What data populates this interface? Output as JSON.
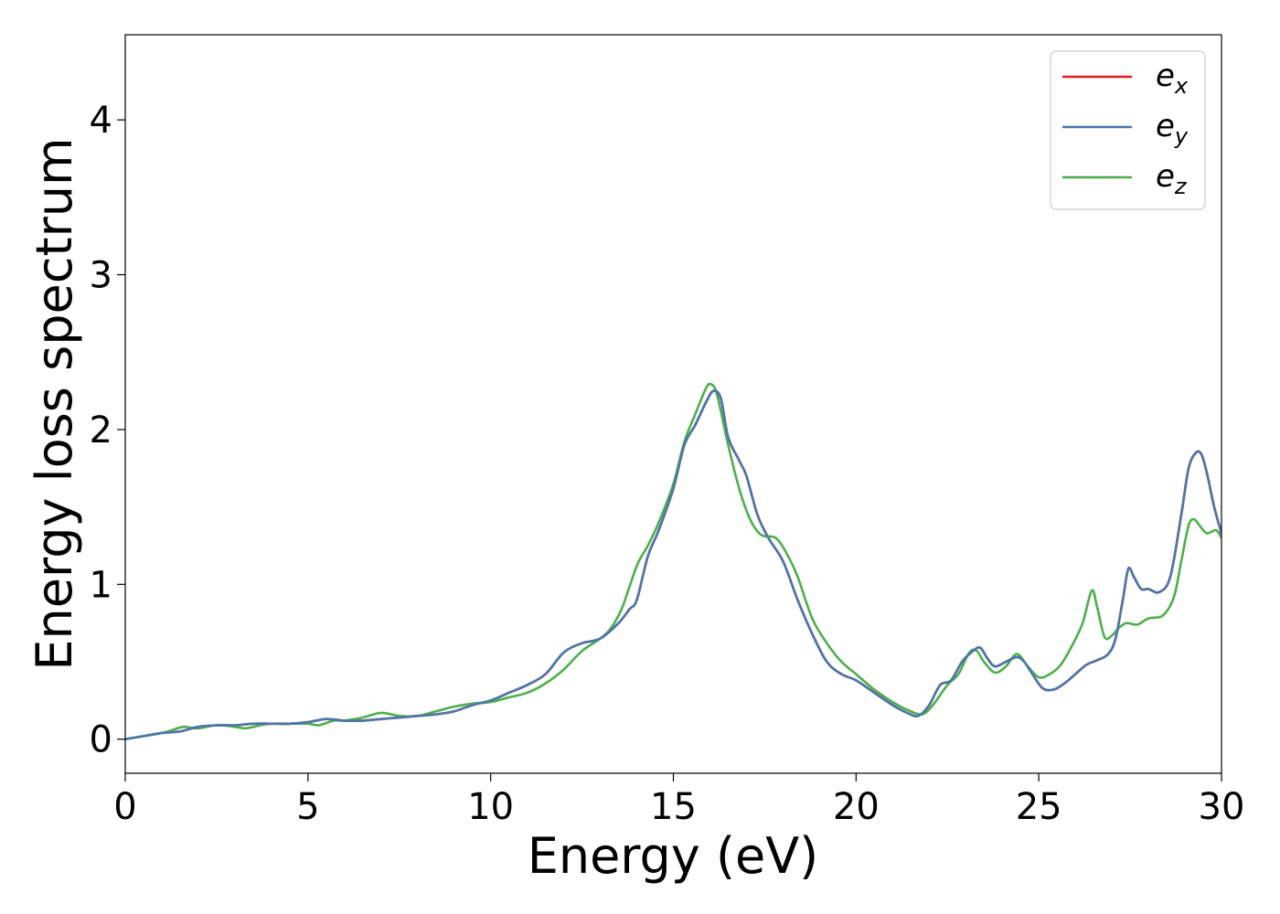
{
  "chart_data": {
    "type": "line",
    "title": "",
    "xlabel": "Energy (eV)",
    "ylabel": "Energy loss spectrum",
    "xlim": [
      0,
      30
    ],
    "ylim": [
      -0.22,
      4.55
    ],
    "xticks": [
      0,
      5,
      10,
      15,
      20,
      25,
      30
    ],
    "yticks": [
      0,
      1,
      2,
      3,
      4
    ],
    "grid": false,
    "legend_position": "top-right",
    "series": [
      {
        "name": "e_x",
        "label_base": "e",
        "label_sub": "x",
        "color": "#e41a1c",
        "x": [
          0,
          0.5,
          1,
          1.5,
          2,
          2.5,
          3,
          3.5,
          4,
          4.5,
          5,
          5.5,
          6,
          6.5,
          7,
          7.5,
          8,
          8.5,
          9,
          9.5,
          10,
          10.5,
          11,
          11.5,
          12,
          12.5,
          13,
          13.5,
          13.8,
          14,
          14.3,
          14.6,
          15,
          15.3,
          15.6,
          15.9,
          16.1,
          16.3,
          16.5,
          16.8,
          17,
          17.3,
          17.6,
          18,
          18.4,
          18.8,
          19.2,
          19.6,
          20,
          20.5,
          21,
          21.4,
          21.7,
          22,
          22.3,
          22.6,
          22.9,
          23.2,
          23.4,
          23.6,
          23.8,
          24.1,
          24.4,
          24.6,
          24.8,
          25.1,
          25.4,
          25.7,
          26,
          26.3,
          26.6,
          26.9,
          27.1,
          27.3,
          27.45,
          27.6,
          27.8,
          28,
          28.3,
          28.6,
          28.9,
          29.1,
          29.3,
          29.45,
          29.6,
          29.8,
          30
        ],
        "y": [
          0.0,
          0.02,
          0.04,
          0.05,
          0.08,
          0.09,
          0.09,
          0.1,
          0.1,
          0.1,
          0.11,
          0.13,
          0.12,
          0.12,
          0.13,
          0.14,
          0.15,
          0.16,
          0.18,
          0.22,
          0.25,
          0.3,
          0.35,
          0.42,
          0.56,
          0.62,
          0.65,
          0.75,
          0.84,
          0.9,
          1.18,
          1.35,
          1.62,
          1.9,
          2.03,
          2.18,
          2.25,
          2.2,
          1.95,
          1.8,
          1.7,
          1.45,
          1.3,
          1.15,
          0.9,
          0.68,
          0.5,
          0.42,
          0.38,
          0.3,
          0.22,
          0.17,
          0.15,
          0.22,
          0.35,
          0.38,
          0.5,
          0.57,
          0.59,
          0.52,
          0.47,
          0.5,
          0.53,
          0.5,
          0.43,
          0.33,
          0.32,
          0.36,
          0.42,
          0.48,
          0.51,
          0.55,
          0.65,
          0.9,
          1.1,
          1.05,
          0.97,
          0.97,
          0.95,
          1.05,
          1.45,
          1.75,
          1.85,
          1.84,
          1.72,
          1.5,
          1.33
        ]
      },
      {
        "name": "e_y",
        "label_base": "e",
        "label_sub": "y",
        "color": "#4a76aa",
        "x": [
          0,
          0.5,
          1,
          1.5,
          2,
          2.5,
          3,
          3.5,
          4,
          4.5,
          5,
          5.5,
          6,
          6.5,
          7,
          7.5,
          8,
          8.5,
          9,
          9.5,
          10,
          10.5,
          11,
          11.5,
          12,
          12.5,
          13,
          13.5,
          13.8,
          14,
          14.3,
          14.6,
          15,
          15.3,
          15.6,
          15.9,
          16.1,
          16.3,
          16.5,
          16.8,
          17,
          17.3,
          17.6,
          18,
          18.4,
          18.8,
          19.2,
          19.6,
          20,
          20.5,
          21,
          21.4,
          21.7,
          22,
          22.3,
          22.6,
          22.9,
          23.2,
          23.4,
          23.6,
          23.8,
          24.1,
          24.4,
          24.6,
          24.8,
          25.1,
          25.4,
          25.7,
          26,
          26.3,
          26.6,
          26.9,
          27.1,
          27.3,
          27.45,
          27.6,
          27.8,
          28,
          28.3,
          28.6,
          28.9,
          29.1,
          29.3,
          29.45,
          29.6,
          29.8,
          30
        ],
        "y": [
          0.0,
          0.02,
          0.04,
          0.05,
          0.08,
          0.09,
          0.09,
          0.1,
          0.1,
          0.1,
          0.11,
          0.13,
          0.12,
          0.12,
          0.13,
          0.14,
          0.15,
          0.16,
          0.18,
          0.22,
          0.25,
          0.3,
          0.35,
          0.42,
          0.56,
          0.62,
          0.65,
          0.75,
          0.84,
          0.9,
          1.18,
          1.35,
          1.62,
          1.9,
          2.03,
          2.18,
          2.25,
          2.2,
          1.95,
          1.8,
          1.7,
          1.45,
          1.3,
          1.15,
          0.9,
          0.68,
          0.5,
          0.42,
          0.38,
          0.3,
          0.22,
          0.17,
          0.15,
          0.22,
          0.35,
          0.38,
          0.5,
          0.57,
          0.59,
          0.52,
          0.47,
          0.5,
          0.53,
          0.5,
          0.43,
          0.33,
          0.32,
          0.36,
          0.42,
          0.48,
          0.51,
          0.55,
          0.65,
          0.9,
          1.1,
          1.05,
          0.97,
          0.97,
          0.95,
          1.05,
          1.45,
          1.75,
          1.85,
          1.84,
          1.72,
          1.5,
          1.33
        ]
      },
      {
        "name": "e_z",
        "label_base": "e",
        "label_sub": "z",
        "color": "#4daf4a",
        "x": [
          0,
          0.5,
          1,
          1.3,
          1.6,
          2,
          2.5,
          3,
          3.3,
          3.7,
          4,
          4.5,
          5,
          5.3,
          5.7,
          6,
          6.5,
          7,
          7.5,
          8,
          8.5,
          9,
          9.5,
          10,
          10.5,
          11,
          11.5,
          12,
          12.5,
          13,
          13.3,
          13.6,
          14,
          14.3,
          14.6,
          15,
          15.3,
          15.6,
          15.9,
          16.05,
          16.2,
          16.5,
          16.8,
          17.1,
          17.4,
          17.8,
          18.1,
          18.4,
          18.8,
          19.2,
          19.6,
          20,
          20.5,
          21,
          21.4,
          21.8,
          22.1,
          22.5,
          22.8,
          23.1,
          23.3,
          23.5,
          23.8,
          24.1,
          24.4,
          24.7,
          25,
          25.3,
          25.6,
          25.9,
          26.2,
          26.45,
          26.6,
          26.8,
          27,
          27.2,
          27.4,
          27.7,
          28,
          28.4,
          28.7,
          28.9,
          29.1,
          29.25,
          29.4,
          29.6,
          29.85,
          30
        ],
        "y": [
          0.0,
          0.02,
          0.04,
          0.06,
          0.08,
          0.07,
          0.09,
          0.08,
          0.07,
          0.09,
          0.1,
          0.1,
          0.1,
          0.09,
          0.12,
          0.12,
          0.14,
          0.17,
          0.15,
          0.15,
          0.18,
          0.21,
          0.23,
          0.24,
          0.27,
          0.3,
          0.36,
          0.45,
          0.57,
          0.65,
          0.72,
          0.85,
          1.12,
          1.25,
          1.4,
          1.65,
          1.92,
          2.1,
          2.27,
          2.29,
          2.22,
          1.9,
          1.62,
          1.42,
          1.32,
          1.3,
          1.2,
          1.05,
          0.78,
          0.62,
          0.5,
          0.42,
          0.32,
          0.24,
          0.19,
          0.16,
          0.22,
          0.35,
          0.42,
          0.56,
          0.57,
          0.5,
          0.43,
          0.47,
          0.55,
          0.47,
          0.4,
          0.42,
          0.48,
          0.6,
          0.75,
          0.96,
          0.85,
          0.66,
          0.67,
          0.72,
          0.75,
          0.74,
          0.78,
          0.8,
          0.92,
          1.15,
          1.38,
          1.42,
          1.38,
          1.33,
          1.35,
          1.3
        ]
      }
    ]
  }
}
